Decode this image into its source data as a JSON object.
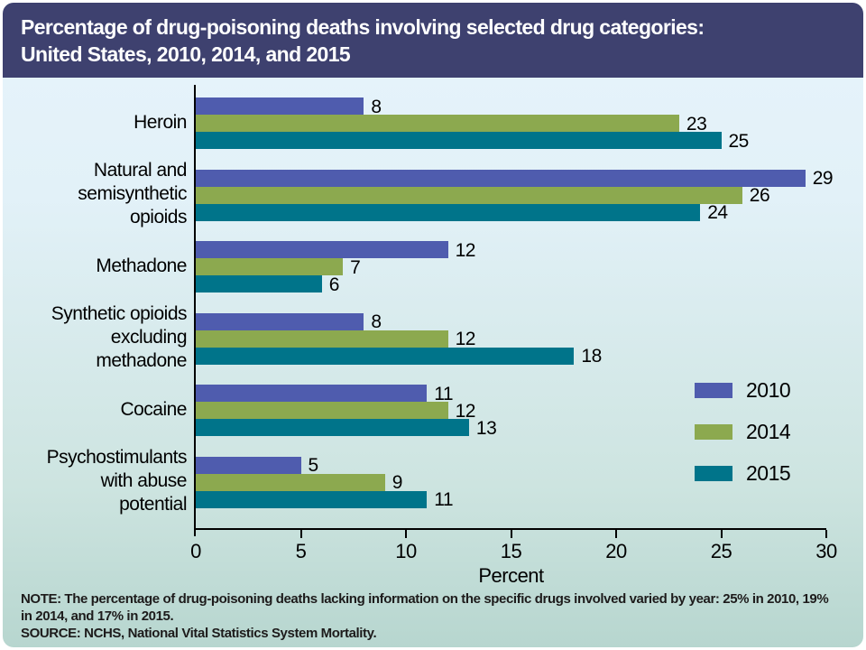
{
  "title": {
    "line1": "Percentage of drug-poisoning deaths involving selected drug categories:",
    "line2": "United States, 2010, 2014, and 2015"
  },
  "chart_data": {
    "type": "bar",
    "orientation": "horizontal",
    "categories": [
      "Heroin",
      "Natural and semisynthetic opioids",
      "Methadone",
      "Synthetic opioids excluding methadone",
      "Cocaine",
      "Psychostimulants with abuse potential"
    ],
    "category_lines": [
      [
        "Heroin"
      ],
      [
        "Natural and",
        "semisynthetic",
        "opioids"
      ],
      [
        "Methadone"
      ],
      [
        "Synthetic opioids",
        "excluding",
        "methadone"
      ],
      [
        "Cocaine"
      ],
      [
        "Psychostimulants",
        "with abuse",
        "potential"
      ]
    ],
    "series": [
      {
        "name": "2010",
        "color": "#4f5cae",
        "values": [
          8,
          29,
          12,
          8,
          11,
          5
        ]
      },
      {
        "name": "2014",
        "color": "#8ca94f",
        "values": [
          23,
          26,
          7,
          12,
          12,
          9
        ]
      },
      {
        "name": "2015",
        "color": "#00748a",
        "values": [
          25,
          24,
          6,
          18,
          13,
          11
        ]
      }
    ],
    "xlabel": "Percent",
    "xlim": [
      0,
      30
    ],
    "xticks": [
      0,
      5,
      10,
      15,
      20,
      25,
      30
    ],
    "grid": false,
    "legend_position": "right-middle",
    "value_labels": true
  },
  "footnote": {
    "note_line1": "NOTE: The percentage of drug-poisoning deaths lacking information on the specific drugs involved varied by year: 25% in 2010, 19%",
    "note_line2": "in 2014, and 17% in 2015.",
    "source": "SOURCE: NCHS, National Vital Statistics System Mortality."
  },
  "colors": {
    "title_background": "#3e416f",
    "title_text": "#ffffff",
    "axis": "#000000",
    "background_top": "#e7f4fb",
    "background_bottom": "#b7d6cf"
  }
}
